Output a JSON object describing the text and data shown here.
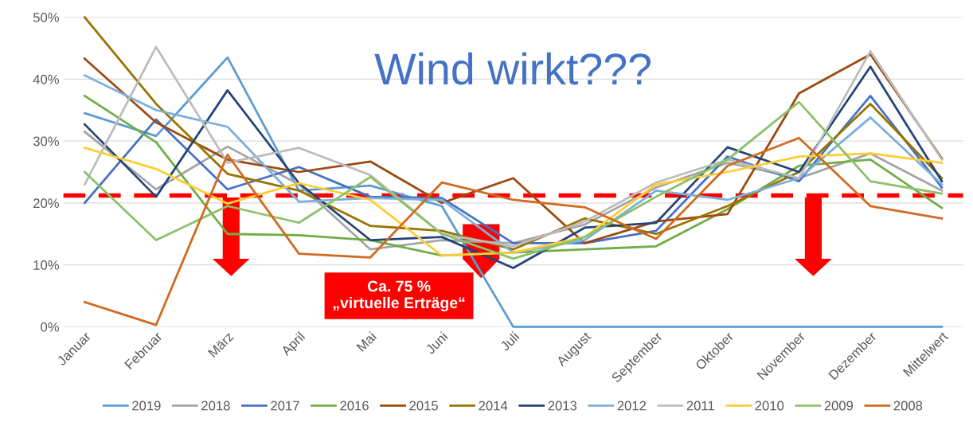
{
  "chart_data": {
    "type": "line",
    "title": "Wind wirkt???",
    "categories": [
      "Januar",
      "Februar",
      "März",
      "April",
      "Mai",
      "Juni",
      "Juli",
      "August",
      "September",
      "Oktober",
      "November",
      "Dezember",
      "Mittelwert"
    ],
    "series": [
      {
        "name": "2019",
        "color": "#5b9bd5",
        "values": [
          34.5,
          30.8,
          43.5,
          22.0,
          22.8,
          19.5,
          0,
          0,
          0,
          0,
          0,
          0,
          0
        ]
      },
      {
        "name": "2018",
        "color": "#a5a5a5",
        "values": [
          31.5,
          22.2,
          29.1,
          23.0,
          12.5,
          14.0,
          13.5,
          16.5,
          22.5,
          26.5,
          24.0,
          28.0,
          22.0
        ]
      },
      {
        "name": "2017",
        "color": "#4472c4",
        "values": [
          20.0,
          33.5,
          22.2,
          25.8,
          21.0,
          20.8,
          13.5,
          13.5,
          15.5,
          27.5,
          23.5,
          37.3,
          22.5
        ]
      },
      {
        "name": "2016",
        "color": "#70ad47",
        "values": [
          37.3,
          29.8,
          15.0,
          14.8,
          14.0,
          11.5,
          12.0,
          12.5,
          13.0,
          19.0,
          26.0,
          27.0,
          19.2
        ]
      },
      {
        "name": "2015",
        "color": "#9e480e",
        "values": [
          43.3,
          33.0,
          27.0,
          25.0,
          26.7,
          20.0,
          24.0,
          13.5,
          17.0,
          18.2,
          37.7,
          44.0,
          27.2
        ]
      },
      {
        "name": "2014",
        "color": "#997300",
        "values": [
          50,
          36.0,
          24.7,
          22.0,
          16.3,
          15.5,
          12.5,
          17.5,
          15.0,
          19.5,
          25.0,
          36.0,
          24.0
        ]
      },
      {
        "name": "2013",
        "color": "#264478",
        "values": [
          32.7,
          21.0,
          38.2,
          23.2,
          14.0,
          14.5,
          9.5,
          16.0,
          16.8,
          29.0,
          25.0,
          42.0,
          23.5
        ]
      },
      {
        "name": "2012",
        "color": "#7cafdd",
        "values": [
          40.6,
          35.0,
          32.3,
          20.2,
          20.8,
          20.5,
          12.0,
          14.0,
          22.0,
          20.5,
          24.0,
          33.8,
          23.0
        ]
      },
      {
        "name": "2011",
        "color": "#bcbcbc",
        "values": [
          23.0,
          45.2,
          26.5,
          28.9,
          24.5,
          15.0,
          13.0,
          17.0,
          23.3,
          27.0,
          24.0,
          44.5,
          27.0
        ]
      },
      {
        "name": "2010",
        "color": "#ffcd33",
        "values": [
          28.9,
          25.5,
          19.9,
          23.2,
          20.5,
          11.5,
          12.0,
          14.5,
          23.0,
          25.0,
          27.5,
          28.0,
          26.5
        ]
      },
      {
        "name": "2009",
        "color": "#8cc168",
        "values": [
          25.0,
          14.0,
          19.5,
          16.8,
          24.2,
          15.0,
          11.0,
          14.5,
          21.0,
          27.0,
          36.3,
          23.5,
          21.5
        ]
      },
      {
        "name": "2008",
        "color": "#d2691e",
        "values": [
          4.0,
          0.3,
          27.8,
          11.8,
          11.2,
          23.3,
          20.5,
          19.3,
          14.2,
          26.0,
          30.5,
          19.5,
          17.5
        ]
      }
    ],
    "ylim": [
      0,
      50
    ],
    "yticks": [
      {
        "value": 0,
        "label": "0%"
      },
      {
        "value": 10,
        "label": "10%"
      },
      {
        "value": 20,
        "label": "20%"
      },
      {
        "value": 30,
        "label": "30%"
      },
      {
        "value": 40,
        "label": "40%"
      },
      {
        "value": 50,
        "label": "50%"
      }
    ],
    "ref_lines": [
      {
        "axis": "y",
        "value": 21.2,
        "color": "#ff0000",
        "line_style": "dashed"
      }
    ],
    "annotations": [
      "Ca. 75 %\n„virtuelle Erträge“"
    ],
    "grid": "y",
    "legend": "bottom",
    "marker": "none",
    "line_style": "solid"
  }
}
